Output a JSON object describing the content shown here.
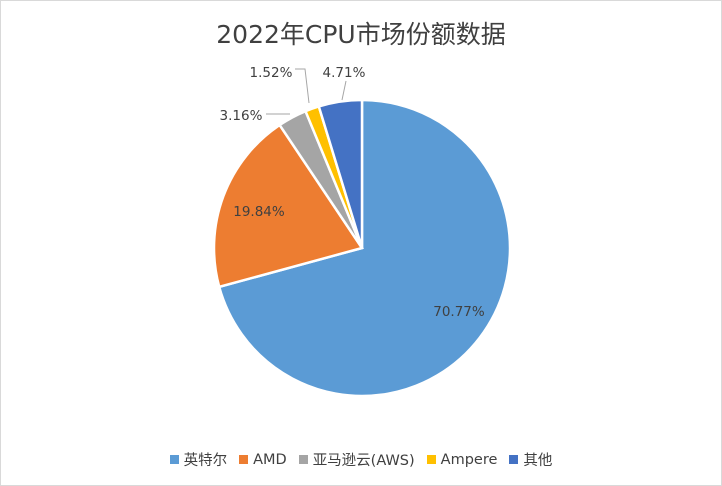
{
  "chart_data": {
    "type": "pie",
    "title": "2022年CPU市场份额数据",
    "slices": [
      {
        "name": "英特尔",
        "value": 70.77,
        "label": "70.77%",
        "color": "#5b9bd5"
      },
      {
        "name": "AMD",
        "value": 19.84,
        "label": "19.84%",
        "color": "#ed7d31"
      },
      {
        "name": "亚马逊云(AWS)",
        "value": 3.16,
        "label": "3.16%",
        "color": "#a5a5a5"
      },
      {
        "name": "Ampere",
        "value": 1.52,
        "label": "1.52%",
        "color": "#ffc000"
      },
      {
        "name": "其他",
        "value": 4.71,
        "label": "4.71%",
        "color": "#4472c4"
      }
    ],
    "legend_position": "bottom"
  }
}
